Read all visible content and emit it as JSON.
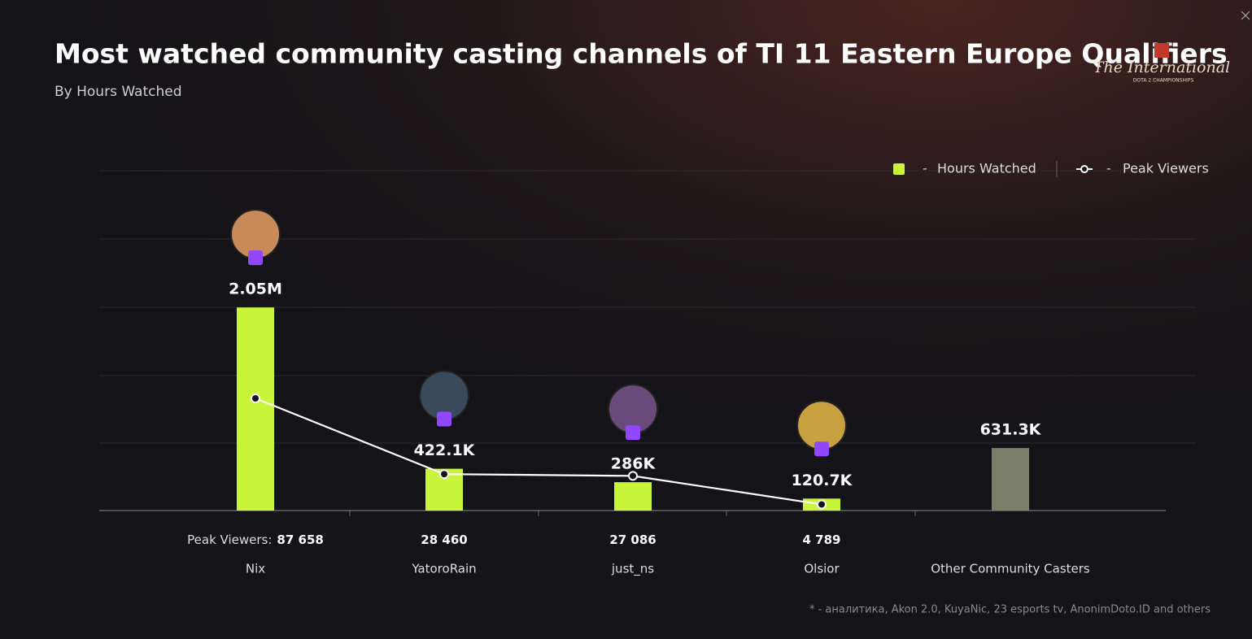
{
  "chart_data": {
    "type": "bar_line",
    "title": "Most watched community casting channels of TI 11 Eastern Europe Qualifiers",
    "subtitle": "By Hours Watched",
    "categories": [
      "Nix",
      "YatoroRain",
      "just_ns",
      "Olsior",
      "Other Community Casters"
    ],
    "series": [
      {
        "name": "Hours Watched",
        "type": "bar",
        "color": "#c8f53a",
        "point_colors": [
          "#c8f53a",
          "#c8f53a",
          "#c8f53a",
          "#c8f53a",
          "#7b7e68"
        ],
        "values": [
          2050000,
          422100,
          286000,
          120700,
          631300
        ],
        "value_labels": [
          "2.05M",
          "422.1K",
          "286K",
          "120.7K",
          "631.3K"
        ]
      },
      {
        "name": "Peak Viewers",
        "type": "line",
        "axis": "y2",
        "color": "#ffffff",
        "values": [
          87658,
          28460,
          27086,
          4789,
          null
        ],
        "value_labels": [
          "87 658",
          "28 460",
          "27 086",
          "4 789",
          null
        ]
      }
    ],
    "peak_viewers_prefix": "Peak Viewers:",
    "ylim": [
      0,
      3430000
    ],
    "y2lim": [
      0,
      265500
    ],
    "grid": true,
    "legend": "top-right",
    "footnote": "* - аналитика, Akon 2.0, KuyaNic, 23 esports tv, AnonimDoto.ID and others"
  },
  "logo": {
    "name": "The International",
    "subtitle": "DOTA 2 CHAMPIONSHIPS"
  }
}
